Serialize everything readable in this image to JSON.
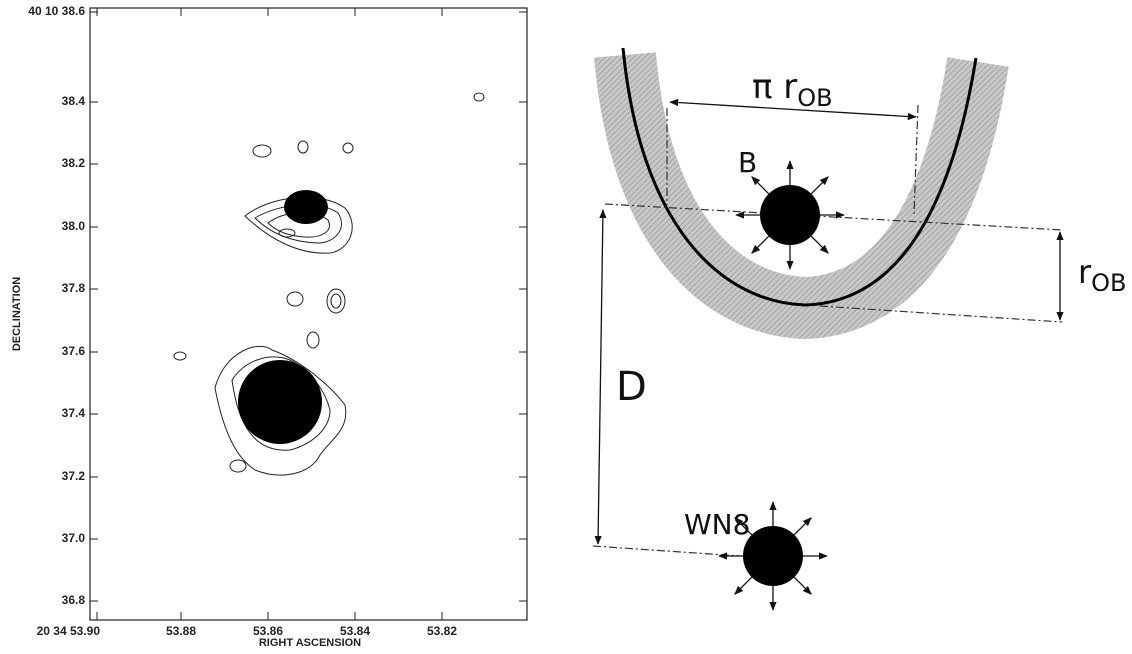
{
  "map": {
    "y_ticks": [
      "40 10 38.6",
      "38.4",
      "38.2",
      "38.0",
      "37.8",
      "37.6",
      "37.4",
      "37.2",
      "37.0",
      "36.8"
    ],
    "x_ticks": [
      "20 34 53.90",
      "53.88",
      "53.86",
      "53.84",
      "53.82"
    ],
    "y_label": "DECLINATION",
    "x_label": "RIGHT ASCENSION"
  },
  "diagram": {
    "width_label": {
      "main": "π r",
      "sub": "OB"
    },
    "b_label": "B",
    "radius_label": {
      "main": "r",
      "sub": "OB"
    },
    "d_label": "D",
    "wn8_label": "WN8"
  }
}
